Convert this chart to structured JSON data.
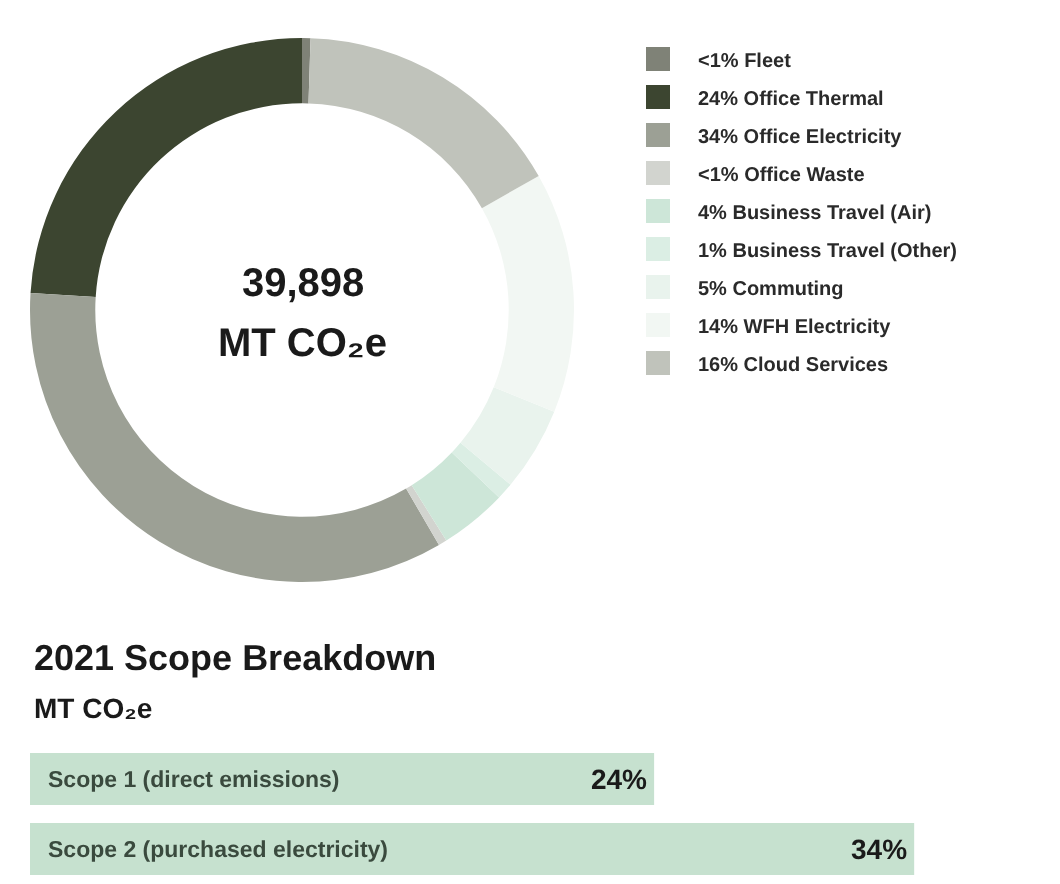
{
  "chart_data": [
    {
      "type": "donut",
      "categories": [
        "Fleet",
        "Office Thermal",
        "Office Electricity",
        "Office Waste",
        "Business Travel (Air)",
        "Business Travel (Other)",
        "Commuting",
        "WFH Electricity",
        "Cloud Services"
      ],
      "values": [
        0.5,
        24,
        34.4,
        0.5,
        4,
        1,
        5,
        14.3,
        16.3
      ],
      "value_labels": [
        "<1%",
        "24%",
        "34%",
        "<1%",
        "4%",
        "1%",
        "5%",
        "14%",
        "16%"
      ],
      "colors": [
        "#7f8277",
        "#3c4530",
        "#9ca095",
        "#d2d4cf",
        "#cde6d8",
        "#dbeee4",
        "#e9f3ed",
        "#f2f7f3",
        "#c0c3bb"
      ],
      "annotations": [
        "39,898",
        "MT CO₂e"
      ],
      "legend": "top right"
    },
    {
      "type": "bar",
      "orientation": "horizontal",
      "title": "2021 Scope Breakdown",
      "subtitle": "MT CO₂e",
      "categories": [
        "Scope 1 (direct emissions)",
        "Scope 2 (purchased electricity)"
      ],
      "values": [
        24,
        34
      ],
      "value_labels": [
        "24%",
        "34%"
      ],
      "color": "#c6e1cf",
      "tick_labels": "y"
    }
  ]
}
